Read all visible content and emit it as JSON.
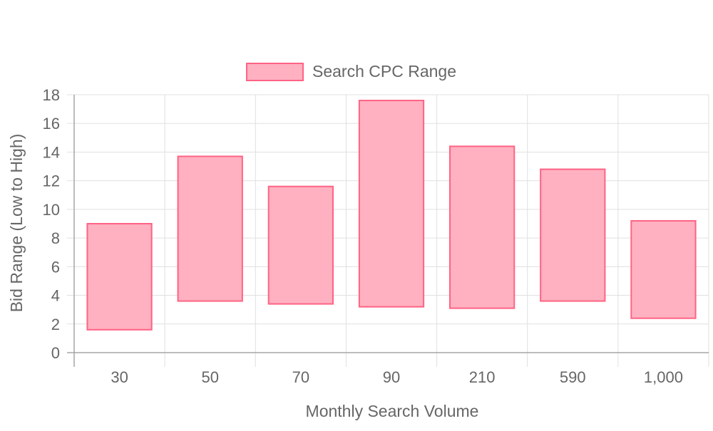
{
  "chart_data": {
    "type": "bar",
    "subtype": "floating-range",
    "xlabel": "Monthly Search Volume",
    "ylabel": "Bid Range (Low to High)",
    "categories": [
      "30",
      "50",
      "70",
      "90",
      "210",
      "590",
      "1,000"
    ],
    "series": [
      {
        "name": "Search CPC Range",
        "low": [
          1.6,
          3.6,
          3.4,
          3.2,
          3.1,
          3.6,
          2.4
        ],
        "high": [
          9.0,
          13.7,
          11.6,
          17.6,
          14.4,
          12.8,
          9.2
        ],
        "fill": "#ffb1c1",
        "stroke": "#ff6384"
      }
    ],
    "ylim": [
      0,
      18
    ],
    "yticks": [
      "0",
      "2",
      "4",
      "6",
      "8",
      "10",
      "12",
      "14",
      "16",
      "18"
    ],
    "grid": true,
    "legend_position": "top"
  }
}
